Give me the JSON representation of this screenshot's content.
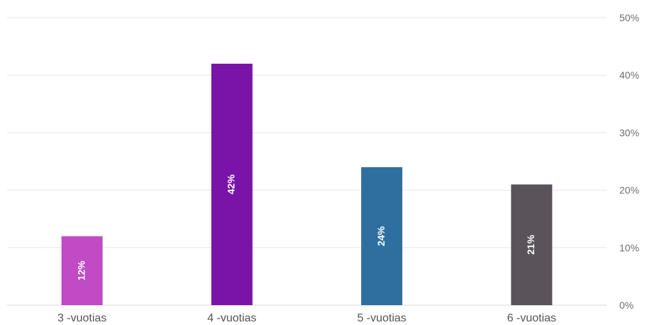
{
  "chart_data": {
    "type": "bar",
    "title": "",
    "xlabel": "",
    "ylabel": "",
    "categories": [
      "3 -vuotias",
      "4 -vuotias",
      "5 -vuotias",
      "6 -vuotias"
    ],
    "values": [
      12,
      42,
      24,
      21
    ],
    "value_labels": [
      "12%",
      "42%",
      "24%",
      "21%"
    ],
    "y_ticks": [
      0,
      10,
      20,
      30,
      40,
      50
    ],
    "y_tick_labels": [
      "0%",
      "10%",
      "20%",
      "30%",
      "40%",
      "50%"
    ],
    "ylim": [
      0,
      50
    ],
    "grid": true,
    "legend": "none",
    "y_axis_position": "right",
    "colors": [
      "#c04bc5",
      "#7a14a8",
      "#2f6f9f",
      "#5a5359"
    ]
  }
}
